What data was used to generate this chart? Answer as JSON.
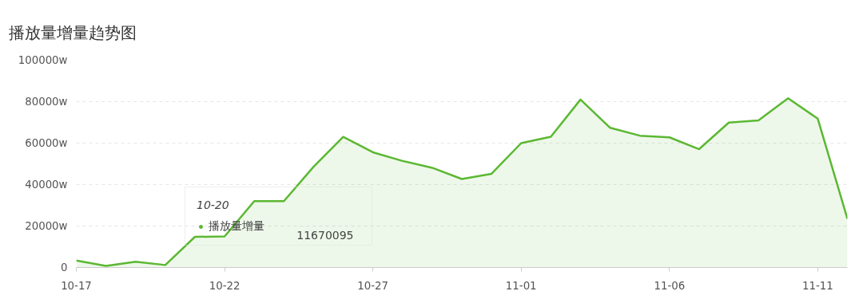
{
  "chart_data": {
    "type": "area",
    "title": "播放量增量趋势图",
    "categories": [
      "10-17",
      null,
      null,
      null,
      null,
      "10-22",
      null,
      null,
      null,
      null,
      "10-27",
      null,
      null,
      null,
      null,
      "11-01",
      null,
      null,
      null,
      null,
      "11-06",
      null,
      null,
      null,
      null,
      "11-11",
      null
    ],
    "series": [
      {
        "name": "播放量增量",
        "color": "#5bb832",
        "values": [
          3400,
          800,
          2800,
          1200,
          14800,
          15000,
          32000,
          32000,
          48600,
          63000,
          55600,
          51400,
          48100,
          42700,
          45200,
          60000,
          63100,
          81000,
          67400,
          63600,
          62800,
          57100,
          69900,
          71000,
          81600,
          71800,
          23500
        ]
      }
    ],
    "ylim": [
      0,
      100000
    ],
    "yticks": [
      0,
      {
        "value": 20000,
        "label": "20000w"
      },
      {
        "value": 40000,
        "label": "40000w"
      },
      {
        "value": 60000,
        "label": "60000w"
      },
      {
        "value": 80000,
        "label": "80000w"
      },
      {
        "value": 100000,
        "label": "100000w"
      }
    ],
    "legend_title": "10-20",
    "annotations": [
      "11670095"
    ],
    "grid": "y",
    "legend": "bottom left",
    "marker": "none",
    "line_style": "solid"
  }
}
